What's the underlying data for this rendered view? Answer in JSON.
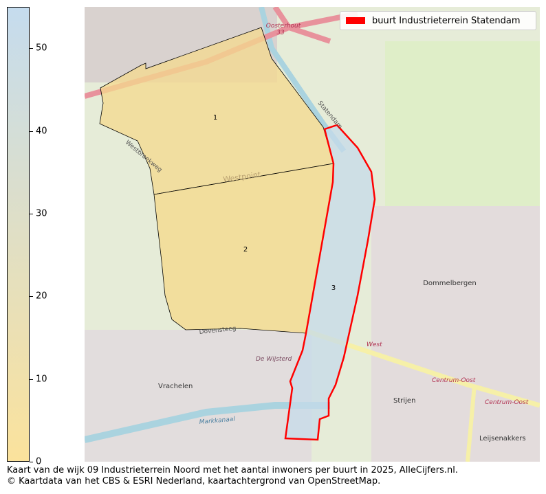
{
  "colorbar": {
    "min": 0,
    "max": 55,
    "ticks": [
      "0",
      "10",
      "20",
      "30",
      "40",
      "50"
    ],
    "color_low": "#fbe29c",
    "color_high": "#c5dcee"
  },
  "legend": {
    "label": "buurt Industrieterrein Statendam",
    "color": "#ff0000"
  },
  "regions": [
    {
      "label": "1",
      "fill": "#f4d98e"
    },
    {
      "label": "2",
      "fill": "#f5d98a"
    },
    {
      "label": "3",
      "fill": "#c6dbea",
      "highlighted": true
    }
  ],
  "map_labels": {
    "oosterhout": "Oosterhout",
    "exit": "33",
    "statendam": "Statendam",
    "westpoint": "Westpoint",
    "dommelbergen": "Dommelbergen",
    "west": "West",
    "centrum_oost_1": "Centrum-Oost",
    "centrum_oost_2": "Centrum-Oost",
    "strijen": "Strijen",
    "vrachelen": "Vrachelen",
    "de_wijsterd": "De Wijsterd",
    "markkanaal": "Markkanaal",
    "leijsenakkers": "Leijsenakkers",
    "dovensteeg": "Dovensteeg",
    "westbroekweg": "Westbroekweg"
  },
  "caption": {
    "line1": "Kaart van de wijk 09 Industrieterrein Noord met het aantal inwoners per buurt in 2025, AlleCijfers.nl.",
    "line2": "© Kaartdata van het CBS & ESRI Nederland, kaartachtergrond van OpenStreetMap."
  }
}
